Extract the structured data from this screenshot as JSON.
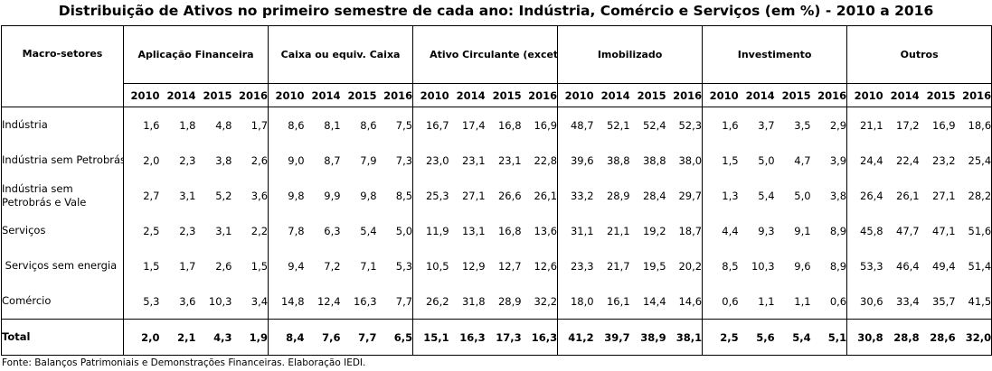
{
  "title": "Distribuição de Ativos no primeiro semestre de cada ano: Indústria, Comércio e Serviços (em %) - 2010 a 2016",
  "table": {
    "row_header": "Macro-setores",
    "years": [
      "2010",
      "2014",
      "2015",
      "2016"
    ],
    "groups": [
      "Aplicação Financeira",
      "Caixa ou equiv. Caixa",
      "Ativo Circulante (exceto caixa  e aplicação financeira)",
      "Imobilizado",
      "Investimento",
      "Outros"
    ],
    "rows": [
      {
        "label": "Indústria",
        "values": [
          "1,6",
          "1,8",
          "4,8",
          "1,7",
          "8,6",
          "8,1",
          "8,6",
          "7,5",
          "16,7",
          "17,4",
          "16,8",
          "16,9",
          "48,7",
          "52,1",
          "52,4",
          "52,3",
          "1,6",
          "3,7",
          "3,5",
          "2,9",
          "21,1",
          "17,2",
          "16,9",
          "18,6"
        ]
      },
      {
        "label": "Indústria sem Petrobrás",
        "values": [
          "2,0",
          "2,3",
          "3,8",
          "2,6",
          "9,0",
          "8,7",
          "7,9",
          "7,3",
          "23,0",
          "23,1",
          "23,1",
          "22,8",
          "39,6",
          "38,8",
          "38,8",
          "38,0",
          "1,5",
          "5,0",
          "4,7",
          "3,9",
          "24,4",
          "22,4",
          "23,2",
          "25,4"
        ]
      },
      {
        "label": "Indústria sem Petrobrás e Vale",
        "values": [
          "2,7",
          "3,1",
          "5,2",
          "3,6",
          "9,8",
          "9,9",
          "9,8",
          "8,5",
          "25,3",
          "27,1",
          "26,6",
          "26,1",
          "33,2",
          "28,9",
          "28,4",
          "29,7",
          "1,3",
          "5,4",
          "5,0",
          "3,8",
          "26,4",
          "26,1",
          "27,1",
          "28,2"
        ]
      },
      {
        "label": "Serviços",
        "values": [
          "2,5",
          "2,3",
          "3,1",
          "2,2",
          "7,8",
          "6,3",
          "5,4",
          "5,0",
          "11,9",
          "13,1",
          "16,8",
          "13,6",
          "31,1",
          "21,1",
          "19,2",
          "18,7",
          "4,4",
          "9,3",
          "9,1",
          "8,9",
          "45,8",
          "47,7",
          "47,1",
          "51,6"
        ]
      },
      {
        "label": " Serviços sem energia",
        "values": [
          "1,5",
          "1,7",
          "2,6",
          "1,5",
          "9,4",
          "7,2",
          "7,1",
          "5,3",
          "10,5",
          "12,9",
          "12,7",
          "12,6",
          "23,3",
          "21,7",
          "19,5",
          "20,2",
          "8,5",
          "10,3",
          "9,6",
          "8,9",
          "53,3",
          "46,4",
          "49,4",
          "51,4"
        ]
      },
      {
        "label": "Comércio",
        "values": [
          "5,3",
          "3,6",
          "10,3",
          "3,4",
          "14,8",
          "12,4",
          "16,3",
          "7,7",
          "26,2",
          "31,8",
          "28,9",
          "32,2",
          "18,0",
          "16,1",
          "14,4",
          "14,6",
          "0,6",
          "1,1",
          "1,1",
          "0,6",
          "30,6",
          "33,4",
          "35,7",
          "41,5"
        ]
      },
      {
        "label": "Total",
        "values": [
          "2,0",
          "2,1",
          "4,3",
          "1,9",
          "8,4",
          "7,6",
          "7,7",
          "6,5",
          "15,1",
          "16,3",
          "17,3",
          "16,3",
          "41,2",
          "39,7",
          "38,9",
          "38,1",
          "2,5",
          "5,6",
          "5,4",
          "5,1",
          "30,8",
          "28,8",
          "28,6",
          "32,0"
        ]
      }
    ]
  },
  "source": "Fonte: Balanços Patrimoniais e Demonstrações Financeiras. Elaboração IEDI."
}
